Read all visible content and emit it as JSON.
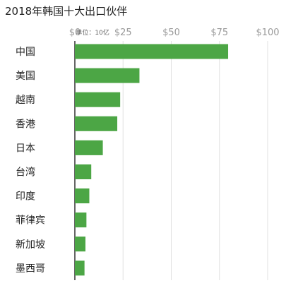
{
  "chart_data": {
    "type": "bar",
    "orientation": "horizontal",
    "title": "2018年韩国十大出口伙伴",
    "unit_label": "单位：10亿",
    "categories": [
      "中国",
      "美国",
      "越南",
      "香港",
      "日本",
      "台湾",
      "印度",
      "菲律宾",
      "新加坡",
      "墨西哥"
    ],
    "values": [
      79.5,
      33.5,
      23.5,
      22.0,
      14.5,
      8.5,
      7.5,
      6.0,
      5.5,
      5.0
    ],
    "xlim": [
      0,
      100
    ],
    "ticks": [
      0,
      25,
      50,
      75,
      100
    ],
    "tick_labels": [
      "$0",
      "$25",
      "$50",
      "$75",
      "$100"
    ],
    "grid": true,
    "bar_color": "#4ca645",
    "grid_color": "#e0e0e0",
    "axis_color": "#333333"
  }
}
